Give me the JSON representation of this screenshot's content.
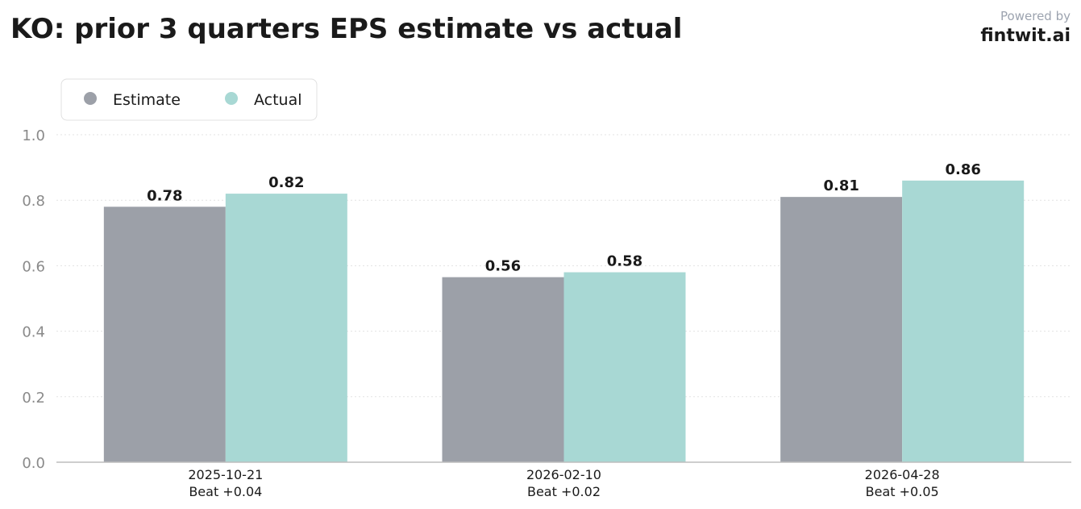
{
  "title": "KO: prior 3 quarters EPS estimate vs actual",
  "brand": {
    "caption": "Powered by",
    "name": "fintwit.ai"
  },
  "chart_data": {
    "type": "bar",
    "categories": [
      "2025-10-21",
      "2026-02-10",
      "2026-04-28"
    ],
    "category_notes": [
      "Beat +0.04",
      "Beat +0.02",
      "Beat +0.05"
    ],
    "series": [
      {
        "name": "Estimate",
        "color": "#9ca0a8",
        "values": [
          0.78,
          0.565,
          0.81
        ],
        "labels": [
          "0.78",
          "0.56",
          "0.81"
        ]
      },
      {
        "name": "Actual",
        "color": "#a8d8d4",
        "values": [
          0.82,
          0.58,
          0.86
        ],
        "labels": [
          "0.82",
          "0.58",
          "0.86"
        ]
      }
    ],
    "ylim": [
      0,
      1.0
    ],
    "yticks": [
      0.0,
      0.2,
      0.4,
      0.6,
      0.8,
      1.0
    ],
    "ytick_labels": [
      "0.0",
      "0.2",
      "0.4",
      "0.6",
      "0.8",
      "1.0"
    ],
    "grid": true,
    "legend": "top-left",
    "xlabel": "",
    "ylabel": ""
  }
}
